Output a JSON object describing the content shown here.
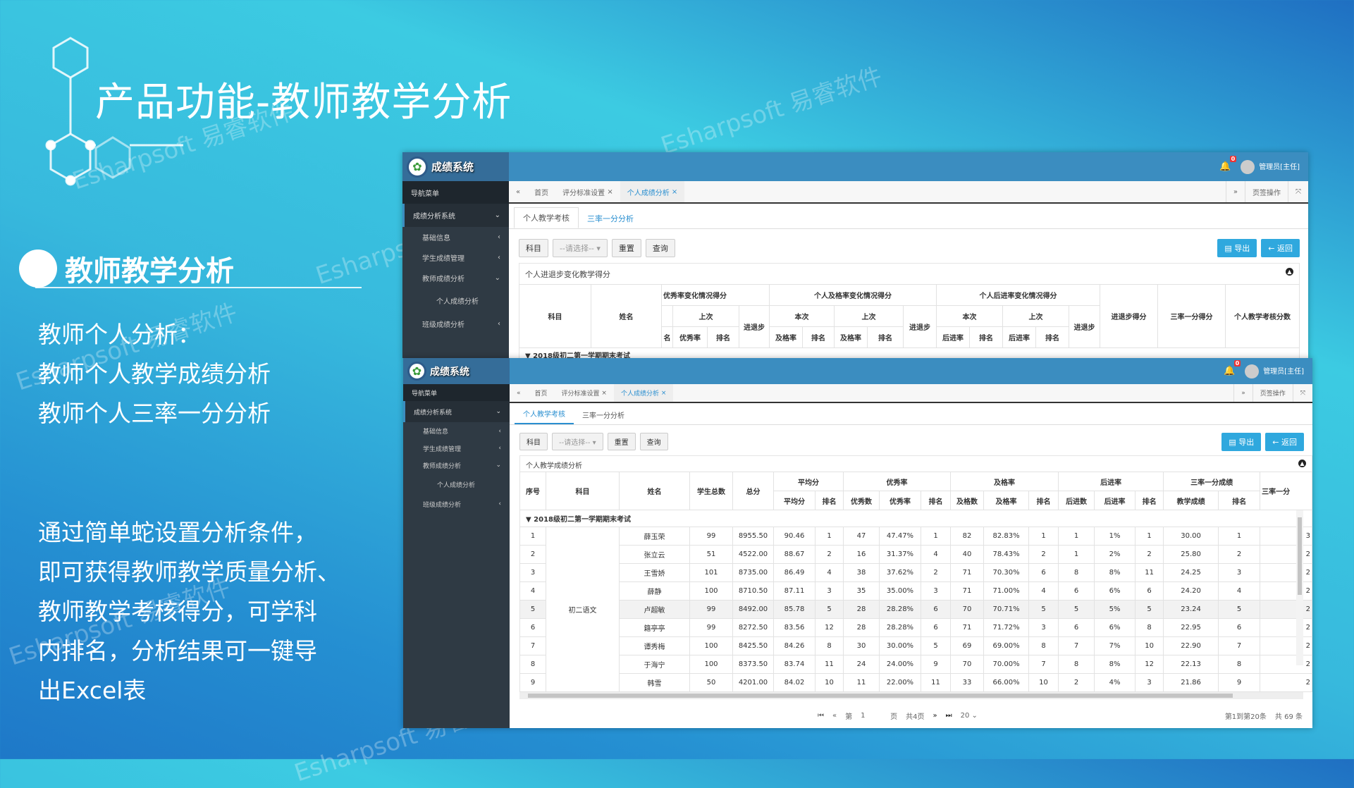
{
  "slide": {
    "title": "产品功能-教师教学分析",
    "heading": "教师教学分析",
    "para1": [
      "教师个人分析：",
      "教师个人教学成绩分析",
      "教师个人三率一分分析"
    ],
    "para2": [
      "通过简单蛇设置分析条件，",
      "即可获得教师教学质量分析、",
      "教师教学考核得分，可学科",
      "内排名，分析结果可一键导",
      "出Excel表"
    ],
    "watermark": "Esharpsoft 易睿软件",
    "watermark_short": "Esharpsoft"
  },
  "app": {
    "name": "成绩系统",
    "notifications": "0",
    "user": "管理员[主任]",
    "nav_title": "导航菜单",
    "system": "成绩分析系统",
    "menu": [
      "基础信息",
      "学生成绩管理",
      "教师成绩分析",
      "个人成绩分析",
      "班级成绩分析"
    ],
    "tabs": [
      "首页",
      "评分标准设置",
      "个人成绩分析"
    ],
    "tab_ops": "页签操作",
    "subtabs": [
      "个人教学考核",
      "三率一分分析"
    ],
    "filter_label": "科目",
    "filter_placeholder": "--请选择--",
    "reset": "重置",
    "query": "查询",
    "export": "导出",
    "back": "返回"
  },
  "top_panel": {
    "title": "个人进退步变化教学得分",
    "h1": [
      "科目",
      "姓名",
      "优秀率变化情况得分",
      "个人及格率变化情况得分",
      "个人后进率变化情况得分",
      "进退步得分",
      "三率一分得分",
      "个人教学考核分数"
    ],
    "h2": [
      "上次",
      "进退步",
      "本次",
      "上次",
      "进退步",
      "本次",
      "上次",
      "进退步"
    ],
    "h3": [
      "名",
      "优秀率",
      "排名",
      "及格率",
      "排名",
      "及格率",
      "排名",
      "后进率",
      "排名",
      "后进率",
      "排名"
    ],
    "group": "2018级初二第一学期期末考试"
  },
  "bottom_panel": {
    "title": "个人教学成绩分析",
    "h1": [
      "序号",
      "科目",
      "姓名",
      "学生总数",
      "总分",
      "平均分",
      "优秀率",
      "及格率",
      "后进率",
      "三率一分成绩",
      "三率一分"
    ],
    "h2": [
      "平均分",
      "排名",
      "优秀数",
      "优秀率",
      "排名",
      "及格数",
      "及格率",
      "排名",
      "后进数",
      "后进率",
      "排名",
      "教学成绩",
      "排名"
    ],
    "group": "2018级初二第一学期期末考试",
    "subject": "初二语文",
    "rows": [
      [
        "1",
        "薛玉荣",
        "99",
        "8955.50",
        "90.46",
        "1",
        "47",
        "47.47%",
        "1",
        "82",
        "82.83%",
        "1",
        "1",
        "1%",
        "1",
        "30.00",
        "1",
        "3"
      ],
      [
        "2",
        "张立云",
        "51",
        "4522.00",
        "88.67",
        "2",
        "16",
        "31.37%",
        "4",
        "40",
        "78.43%",
        "2",
        "1",
        "2%",
        "2",
        "25.80",
        "2",
        "2"
      ],
      [
        "3",
        "王雪娇",
        "101",
        "8735.00",
        "86.49",
        "4",
        "38",
        "37.62%",
        "2",
        "71",
        "70.30%",
        "6",
        "8",
        "8%",
        "11",
        "24.25",
        "3",
        "2"
      ],
      [
        "4",
        "薛静",
        "100",
        "8710.50",
        "87.11",
        "3",
        "35",
        "35.00%",
        "3",
        "71",
        "71.00%",
        "4",
        "6",
        "6%",
        "6",
        "24.20",
        "4",
        "2"
      ],
      [
        "5",
        "卢超敏",
        "99",
        "8492.00",
        "85.78",
        "5",
        "28",
        "28.28%",
        "6",
        "70",
        "70.71%",
        "5",
        "5",
        "5%",
        "5",
        "23.24",
        "5",
        "2"
      ],
      [
        "6",
        "籍亭亭",
        "99",
        "8272.50",
        "83.56",
        "12",
        "28",
        "28.28%",
        "6",
        "71",
        "71.72%",
        "3",
        "6",
        "6%",
        "8",
        "22.95",
        "6",
        "2"
      ],
      [
        "7",
        "谭秀梅",
        "100",
        "8425.50",
        "84.26",
        "8",
        "30",
        "30.00%",
        "5",
        "69",
        "69.00%",
        "8",
        "7",
        "7%",
        "10",
        "22.90",
        "7",
        "2"
      ],
      [
        "8",
        "于海宁",
        "100",
        "8373.50",
        "83.74",
        "11",
        "24",
        "24.00%",
        "9",
        "70",
        "70.00%",
        "7",
        "8",
        "8%",
        "12",
        "22.13",
        "8",
        "2"
      ],
      [
        "9",
        "韩雪",
        "50",
        "4201.00",
        "84.02",
        "10",
        "11",
        "22.00%",
        "11",
        "33",
        "66.00%",
        "10",
        "2",
        "4%",
        "3",
        "21.86",
        "9",
        "2"
      ]
    ],
    "pager": {
      "page_prefix": "第",
      "page": "1",
      "page_suffix": "页",
      "total_pages": "共4页",
      "page_size": "20",
      "summary": "第1到第20条",
      "total": "共 69 条"
    }
  },
  "colors": {
    "header": "#3b8dc0",
    "sidebar": "#2f3a44",
    "accent": "#2a8fd0",
    "button": "#2fa8de"
  }
}
